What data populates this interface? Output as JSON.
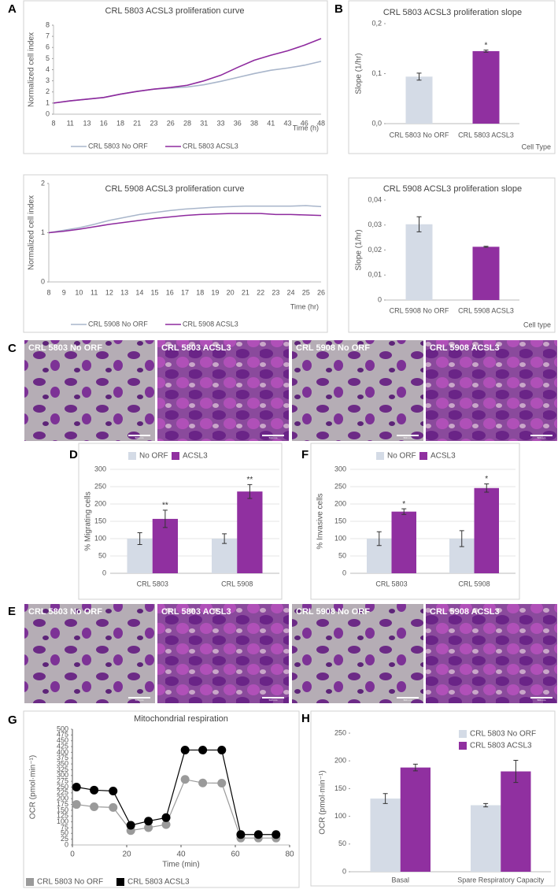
{
  "panel_labels": [
    "A",
    "B",
    "C",
    "D",
    "E",
    "F",
    "G",
    "H"
  ],
  "micrographs": {
    "C": [
      "CRL 5803 No ORF",
      "CRL 5803 ACSL3",
      "CRL 5908 No ORF",
      "CRL 5908 ACSL3"
    ],
    "E": [
      "CRL 5803 No ORF",
      "CRL 5803 ACSL3",
      "CRL 5908 No ORF",
      "CRL 5908 ACSL3"
    ],
    "scale_bar": "500 mm"
  },
  "chart_data": [
    {
      "type": "line",
      "title": "CRL 5803 ACSL3 proliferation curve",
      "xlabel": "Time (h)",
      "ylabel": "Normalized cell index",
      "categories": [
        "8",
        "11",
        "13",
        "16",
        "18",
        "21",
        "23",
        "26",
        "28",
        "31",
        "33",
        "36",
        "38",
        "41",
        "43",
        "46",
        "48"
      ],
      "ylim": [
        0,
        8
      ],
      "yticks": [
        0,
        1,
        2,
        3,
        4,
        5,
        6,
        7,
        8
      ],
      "grid": false,
      "legend": "bottom",
      "series": [
        {
          "name": "CRL 5803 No ORF",
          "color": "#a9b6cb",
          "values": [
            1.0,
            1.2,
            1.35,
            1.5,
            1.8,
            2.05,
            2.25,
            2.35,
            2.45,
            2.65,
            2.95,
            3.3,
            3.65,
            3.95,
            4.15,
            4.4,
            4.75
          ]
        },
        {
          "name": "CRL 5803 ACSL3",
          "color": "#8e2a9e",
          "values": [
            1.0,
            1.2,
            1.35,
            1.5,
            1.8,
            2.05,
            2.25,
            2.4,
            2.6,
            3.0,
            3.5,
            4.2,
            4.85,
            5.3,
            5.7,
            6.2,
            6.8
          ]
        }
      ]
    },
    {
      "type": "bar",
      "title": "CRL 5803 ACSL3 proliferation slope",
      "xlabel": "Cell Type",
      "ylabel": "Slope (1/hr)",
      "categories": [
        "CRL 5803 No ORF",
        "CRL 5803 ACSL3"
      ],
      "values": [
        0.094,
        0.145
      ],
      "errors": [
        0.007,
        0.002
      ],
      "colors": [
        "#d4dbe6",
        "#9030a0"
      ],
      "significance": [
        null,
        "*"
      ],
      "ylim": [
        0,
        0.2
      ],
      "yticks": [
        {
          "value": 0,
          "label": "0,0"
        },
        {
          "value": 0.1,
          "label": "0,1"
        },
        {
          "value": 0.2,
          "label": "0,2"
        }
      ],
      "grid": false
    },
    {
      "type": "line",
      "title": "CRL 5908 ACSL3 proliferation curve",
      "xlabel": "Time (hr)",
      "ylabel": "Normalized cell index",
      "categories": [
        "8",
        "9",
        "10",
        "11",
        "12",
        "13",
        "14",
        "15",
        "16",
        "17",
        "18",
        "19",
        "20",
        "21",
        "22",
        "23",
        "24",
        "25",
        "26"
      ],
      "ylim": [
        0,
        2
      ],
      "yticks": [
        0,
        1,
        2
      ],
      "grid": false,
      "legend": "bottom",
      "series": [
        {
          "name": "CRL 5908 No ORF",
          "color": "#a9b6cb",
          "values": [
            1.0,
            1.05,
            1.1,
            1.17,
            1.25,
            1.31,
            1.37,
            1.41,
            1.45,
            1.48,
            1.5,
            1.52,
            1.53,
            1.54,
            1.54,
            1.54,
            1.54,
            1.55,
            1.53
          ]
        },
        {
          "name": "CRL 5908 ACSL3",
          "color": "#8e2a9e",
          "values": [
            1.0,
            1.03,
            1.07,
            1.12,
            1.17,
            1.21,
            1.25,
            1.29,
            1.32,
            1.35,
            1.37,
            1.38,
            1.39,
            1.39,
            1.39,
            1.37,
            1.37,
            1.36,
            1.35
          ]
        }
      ]
    },
    {
      "type": "bar",
      "title": "CRL 5908 ACSL3 proliferation slope",
      "xlabel": "Cell type",
      "ylabel": "Slope (1/hr)",
      "categories": [
        "CRL 5908 No ORF",
        "CRL 5908 ACSL3"
      ],
      "values": [
        0.0303,
        0.0213
      ],
      "errors": [
        0.003,
        0.0002
      ],
      "colors": [
        "#d4dbe6",
        "#9030a0"
      ],
      "ylim": [
        0,
        0.04
      ],
      "yticks": [
        0,
        {
          "value": 0.01,
          "label": "0,01"
        },
        {
          "value": 0.02,
          "label": "0,02"
        },
        {
          "value": 0.03,
          "label": "0,03"
        },
        {
          "value": 0.04,
          "label": "0,04"
        }
      ],
      "grid": false
    },
    {
      "type": "bar",
      "ylabel": "% Migrating cells",
      "categories": [
        "CRL 5803",
        "CRL 5908"
      ],
      "ylim": [
        0,
        300
      ],
      "yticks": [
        0,
        50,
        100,
        150,
        200,
        250,
        300
      ],
      "grid": true,
      "legend": "top",
      "series": [
        {
          "name": "No ORF",
          "color": "#d4dbe6",
          "values": [
            100,
            100
          ],
          "errors": [
            17,
            14
          ]
        },
        {
          "name": "ACSL3",
          "color": "#9030a0",
          "values": [
            157,
            236
          ],
          "errors": [
            25,
            20
          ],
          "significance": [
            "**",
            "**"
          ]
        }
      ]
    },
    {
      "type": "bar",
      "ylabel": "% Invasive cells",
      "categories": [
        "CRL 5803",
        "CRL 5908"
      ],
      "ylim": [
        0,
        300
      ],
      "yticks": [
        0,
        50,
        100,
        150,
        200,
        250,
        300
      ],
      "grid": true,
      "legend": "top",
      "series": [
        {
          "name": "No ORF",
          "color": "#d4dbe6",
          "values": [
            100,
            100
          ],
          "errors": [
            20,
            23
          ]
        },
        {
          "name": "ACSL3",
          "color": "#9030a0",
          "values": [
            178,
            246
          ],
          "errors": [
            8,
            12
          ],
          "significance": [
            "*",
            "*"
          ]
        }
      ]
    },
    {
      "type": "line",
      "markers": true,
      "title": "Mitochondrial respiration",
      "xlabel": "Time (min)",
      "ylabel": "OCR (pmol·min⁻¹)",
      "x": [
        1.5,
        8,
        15,
        21.5,
        28,
        34.5,
        41.5,
        48,
        55,
        62,
        68.5,
        75
      ],
      "xlim": [
        0,
        80
      ],
      "xticks": [
        0,
        20,
        40,
        60,
        80
      ],
      "ylim": [
        0,
        500
      ],
      "yticks": [
        0,
        25,
        50,
        75,
        100,
        125,
        150,
        175,
        200,
        225,
        250,
        275,
        300,
        325,
        350,
        375,
        400,
        425,
        450,
        475,
        500
      ],
      "grid": false,
      "legend": "bottom",
      "series": [
        {
          "name": "CRL 5803 No ORF",
          "color": "#9a9a9a",
          "values": [
            175,
            165,
            162,
            62,
            75,
            88,
            283,
            268,
            267,
            30,
            30,
            30
          ]
        },
        {
          "name": "CRL 5803 ACSL3",
          "color": "#000000",
          "values": [
            250,
            237,
            233,
            85,
            103,
            118,
            410,
            410,
            410,
            45,
            45,
            45
          ]
        }
      ]
    },
    {
      "type": "bar",
      "ylabel": "OCR (pmol·min⁻¹)",
      "categories": [
        "Basal",
        "Spare Respiratory Capacity"
      ],
      "ylim": [
        0,
        250
      ],
      "yticks": [
        0,
        50,
        100,
        150,
        200,
        250
      ],
      "grid": false,
      "legend": "top-right",
      "series": [
        {
          "name": "CRL 5803 No ORF",
          "color": "#d4dbe6",
          "values": [
            132,
            120
          ],
          "errors": [
            9,
            3
          ]
        },
        {
          "name": "CRL 5803 ACSL3",
          "color": "#9030a0",
          "values": [
            188,
            181
          ],
          "errors": [
            6,
            20
          ]
        }
      ]
    }
  ]
}
